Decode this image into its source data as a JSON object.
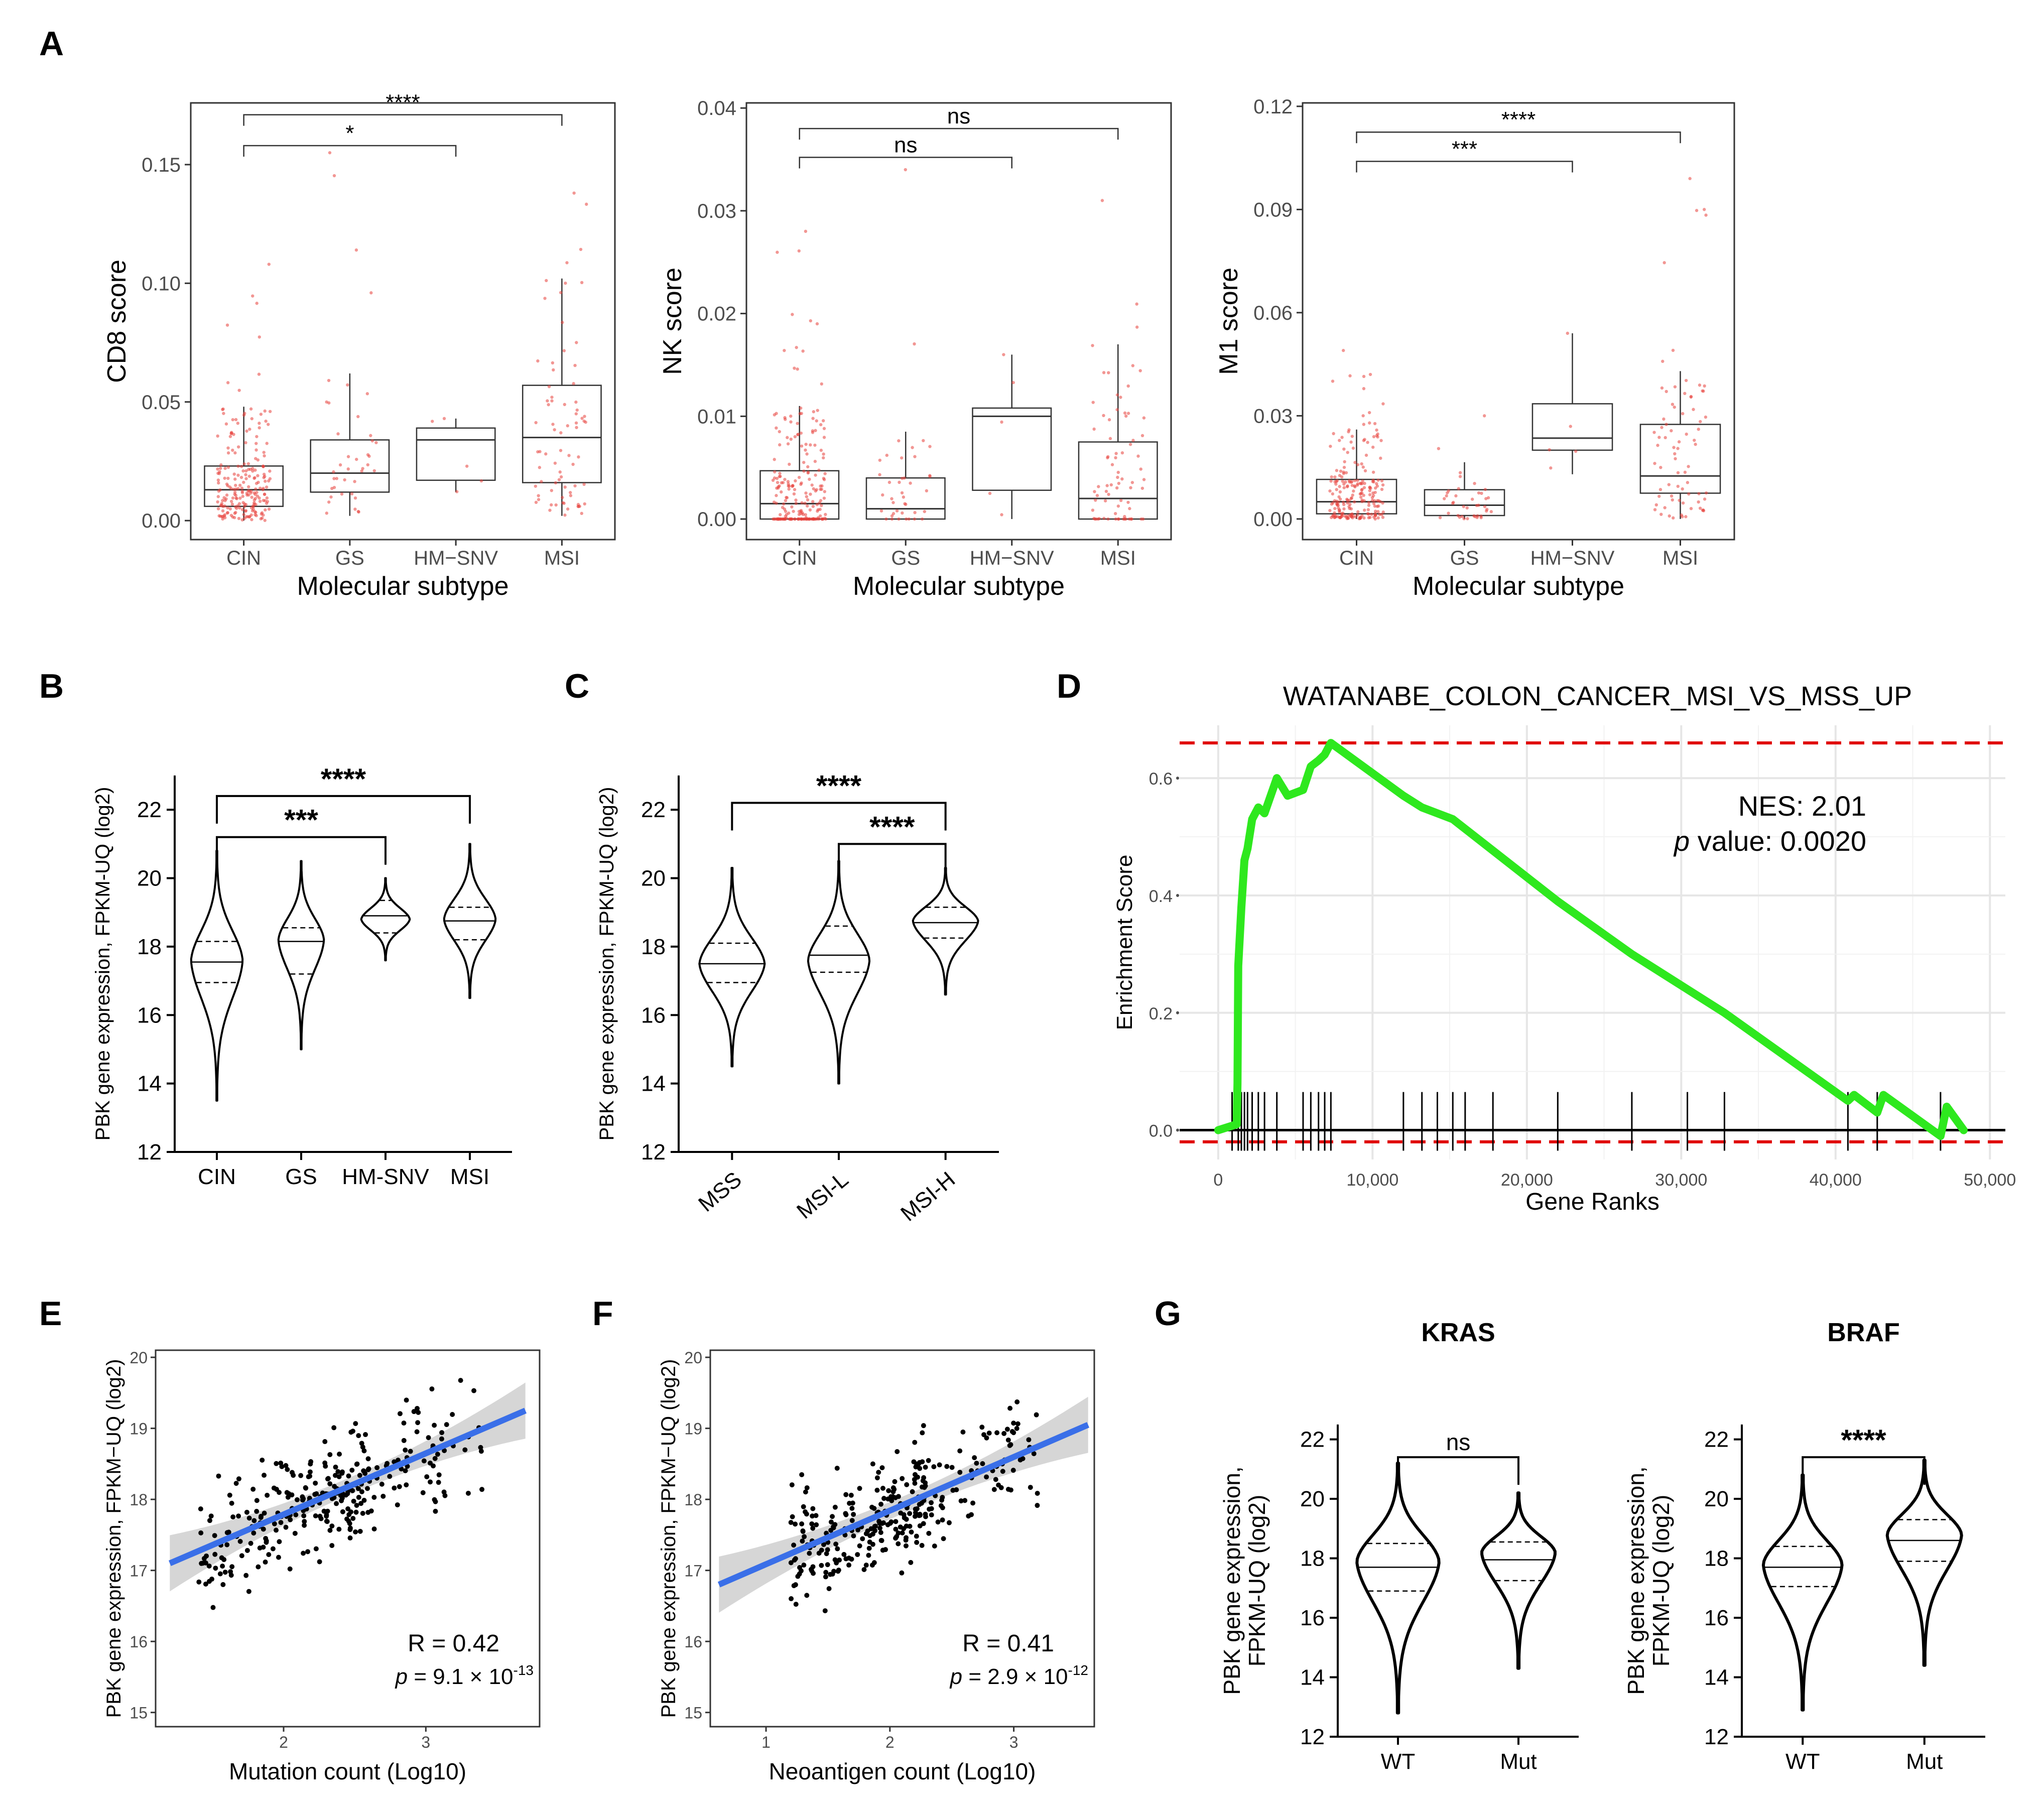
{
  "panel_labels": {
    "A": "A",
    "B": "B",
    "C": "C",
    "D": "D",
    "E": "E",
    "F": "F",
    "G": "G"
  },
  "colors": {
    "red_points": "#e8403a",
    "violin": "#000000",
    "gsea_line": "#2ee81e",
    "gsea_threshold": "#e00000",
    "regression": "#3a6fe8",
    "ci_band": "#c8c8c8"
  },
  "chart_data": [
    {
      "id": "A1",
      "type": "box",
      "ylabel": "CD8 score",
      "xlabel": "Molecular subtype",
      "categories": [
        "CIN",
        "GS",
        "HM−SNV",
        "MSI"
      ],
      "ylim": [
        -0.008,
        0.176
      ],
      "yticks": [
        0.0,
        0.05,
        0.1,
        0.15
      ],
      "ytick_labels": [
        "0.00",
        "0.05",
        "0.10",
        "0.15"
      ],
      "boxes": [
        {
          "q1": 0.006,
          "median": 0.013,
          "q3": 0.023,
          "lo": 0.0,
          "hi": 0.048,
          "n": 220,
          "max": 0.108
        },
        {
          "q1": 0.012,
          "median": 0.02,
          "q3": 0.034,
          "lo": 0.002,
          "hi": 0.062,
          "n": 40,
          "max": 0.155
        },
        {
          "q1": 0.017,
          "median": 0.034,
          "q3": 0.039,
          "lo": 0.012,
          "hi": 0.043,
          "n": 5,
          "max": 0.043
        },
        {
          "q1": 0.016,
          "median": 0.035,
          "q3": 0.057,
          "lo": 0.002,
          "hi": 0.102,
          "n": 75,
          "max": 0.138
        }
      ],
      "comparisons": [
        {
          "from": 0,
          "to": 2,
          "label": "*",
          "y": 0.158
        },
        {
          "from": 0,
          "to": 3,
          "label": "****",
          "y": 0.171
        }
      ]
    },
    {
      "id": "A2",
      "type": "box",
      "ylabel": "NK score",
      "xlabel": "Molecular subtype",
      "categories": [
        "CIN",
        "GS",
        "HM−SNV",
        "MSI"
      ],
      "ylim": [
        -0.002,
        0.0405
      ],
      "yticks": [
        0.0,
        0.01,
        0.02,
        0.03,
        0.04
      ],
      "ytick_labels": [
        "0.00",
        "0.01",
        "0.02",
        "0.03",
        "0.04"
      ],
      "boxes": [
        {
          "q1": 0.0,
          "median": 0.0015,
          "q3": 0.0047,
          "lo": 0.0,
          "hi": 0.011,
          "n": 220,
          "max": 0.028
        },
        {
          "q1": 0.0,
          "median": 0.001,
          "q3": 0.004,
          "lo": 0.0,
          "hi": 0.0085,
          "n": 40,
          "max": 0.034
        },
        {
          "q1": 0.0028,
          "median": 0.01,
          "q3": 0.0108,
          "lo": 0.0,
          "hi": 0.016,
          "n": 5,
          "max": 0.016
        },
        {
          "q1": 0.0,
          "median": 0.002,
          "q3": 0.0075,
          "lo": 0.0,
          "hi": 0.017,
          "n": 75,
          "max": 0.031
        }
      ],
      "comparisons": [
        {
          "from": 0,
          "to": 2,
          "label": "ns",
          "y": 0.0352
        },
        {
          "from": 0,
          "to": 3,
          "label": "ns",
          "y": 0.038
        }
      ]
    },
    {
      "id": "A3",
      "type": "box",
      "ylabel": "M1 score",
      "xlabel": "Molecular subtype",
      "categories": [
        "CIN",
        "GS",
        "HM−SNV",
        "MSI"
      ],
      "ylim": [
        -0.006,
        0.121
      ],
      "yticks": [
        0.0,
        0.03,
        0.06,
        0.09,
        0.12
      ],
      "ytick_labels": [
        "0.00",
        "0.03",
        "0.06",
        "0.09",
        "0.12"
      ],
      "boxes": [
        {
          "q1": 0.0015,
          "median": 0.005,
          "q3": 0.0115,
          "lo": 0.0,
          "hi": 0.026,
          "n": 220,
          "max": 0.049
        },
        {
          "q1": 0.001,
          "median": 0.004,
          "q3": 0.0085,
          "lo": 0.0,
          "hi": 0.0165,
          "n": 40,
          "max": 0.03
        },
        {
          "q1": 0.02,
          "median": 0.0235,
          "q3": 0.0335,
          "lo": 0.013,
          "hi": 0.054,
          "n": 5,
          "max": 0.054
        },
        {
          "q1": 0.0075,
          "median": 0.0125,
          "q3": 0.0275,
          "lo": 0.0,
          "hi": 0.043,
          "n": 75,
          "max": 0.099
        }
      ],
      "comparisons": [
        {
          "from": 0,
          "to": 2,
          "label": "***",
          "y": 0.104
        },
        {
          "from": 0,
          "to": 3,
          "label": "****",
          "y": 0.1125
        }
      ]
    },
    {
      "id": "B",
      "type": "violin",
      "ylabel": "PBK gene expression, FPKM-UQ (log2)",
      "categories": [
        "CIN",
        "GS",
        "HM-SNV",
        "MSI"
      ],
      "ylim": [
        12,
        23
      ],
      "yticks": [
        12,
        14,
        16,
        18,
        20,
        22
      ],
      "ytick_labels": [
        "12",
        "14",
        "16",
        "18",
        "20",
        "22"
      ],
      "violins": [
        {
          "lo": 13.5,
          "hi": 20.8,
          "q1": 16.95,
          "median": 17.55,
          "q3": 18.15,
          "mode": 17.6,
          "width": 0.85
        },
        {
          "lo": 15.0,
          "hi": 20.5,
          "q1": 17.2,
          "median": 18.15,
          "q3": 18.55,
          "mode": 18.2,
          "width": 0.75
        },
        {
          "lo": 17.6,
          "hi": 20.0,
          "q1": 18.4,
          "median": 18.9,
          "q3": 19.35,
          "mode": 18.8,
          "width": 0.8
        },
        {
          "lo": 16.5,
          "hi": 21.0,
          "q1": 18.2,
          "median": 18.75,
          "q3": 19.15,
          "mode": 18.8,
          "width": 0.85
        }
      ],
      "comparisons": [
        {
          "from": 0,
          "to": 2,
          "label": "***",
          "y": 21.2
        },
        {
          "from": 0,
          "to": 3,
          "label": "****",
          "y": 22.4
        }
      ]
    },
    {
      "id": "C",
      "type": "violin",
      "ylabel": "PBK gene expression, FPKM-UQ (log2)",
      "categories": [
        "MSS",
        "MSI-L",
        "MSI-H"
      ],
      "ylim": [
        12,
        23
      ],
      "yticks": [
        12,
        14,
        16,
        18,
        20,
        22
      ],
      "ytick_labels": [
        "12",
        "14",
        "16",
        "18",
        "20",
        "22"
      ],
      "violins": [
        {
          "lo": 14.5,
          "hi": 20.3,
          "q1": 16.95,
          "median": 17.5,
          "q3": 18.1,
          "mode": 17.5,
          "width": 0.85
        },
        {
          "lo": 14.0,
          "hi": 20.5,
          "q1": 17.25,
          "median": 17.75,
          "q3": 18.6,
          "mode": 17.6,
          "width": 0.8
        },
        {
          "lo": 16.6,
          "hi": 20.3,
          "q1": 18.25,
          "median": 18.7,
          "q3": 19.15,
          "mode": 18.75,
          "width": 0.85
        }
      ],
      "comparisons": [
        {
          "from": 1,
          "to": 2,
          "label": "****",
          "y": 21.0
        },
        {
          "from": 0,
          "to": 2,
          "label": "****",
          "y": 22.2
        }
      ]
    },
    {
      "id": "D",
      "type": "line",
      "title": "WATANABE_COLON_CANCER_MSI_VS_MSS_UP",
      "ylabel": "Enrichment Score",
      "xlabel": "Gene Ranks",
      "xlim": [
        -2500,
        51000
      ],
      "ylim": [
        -0.05,
        0.69
      ],
      "xticks": [
        0,
        10000,
        20000,
        30000,
        40000,
        50000
      ],
      "xtick_labels": [
        "0",
        "10,000",
        "20,000",
        "30,000",
        "40,000",
        "50,000"
      ],
      "yticks": [
        0,
        0.2,
        0.4,
        0.6
      ],
      "ytick_labels": [
        "0.0",
        "0.2",
        "0.4",
        "0.6"
      ],
      "thresholds": [
        0.66,
        -0.02
      ],
      "x": [
        0,
        1200,
        1250,
        1300,
        1500,
        1700,
        1900,
        2200,
        2600,
        3000,
        3800,
        4500,
        5500,
        6000,
        6500,
        6900,
        7300,
        12000,
        13200,
        14200,
        15200,
        22000,
        26800,
        30400,
        32800,
        40800,
        41200,
        42700,
        43100,
        46800,
        47200,
        48300
      ],
      "y": [
        0,
        0.01,
        0.08,
        0.28,
        0.38,
        0.46,
        0.48,
        0.53,
        0.55,
        0.54,
        0.6,
        0.57,
        0.58,
        0.62,
        0.63,
        0.64,
        0.66,
        0.57,
        0.55,
        0.54,
        0.53,
        0.39,
        0.3,
        0.24,
        0.2,
        0.05,
        0.06,
        0.03,
        0.06,
        -0.01,
        0.04,
        0.0
      ],
      "hits": [
        900,
        1300,
        1500,
        1700,
        1900,
        2200,
        2600,
        3000,
        3800,
        5500,
        6000,
        6500,
        6900,
        7300,
        12000,
        13200,
        14200,
        15200,
        16000,
        17800,
        22000,
        26800,
        30400,
        32800,
        40800,
        42700,
        46800
      ],
      "annotations": {
        "nes": "NES: 2.01",
        "p_label": "p",
        "p_text": " value: 0.0020"
      }
    },
    {
      "id": "E",
      "type": "scatter",
      "xlabel": "Mutation count (Log10)",
      "ylabel": "PBK gene expression, FPKM−UQ (log2)",
      "xlim": [
        1.1,
        3.8
      ],
      "ylim": [
        14.8,
        20.1
      ],
      "xticks": [
        2,
        3
      ],
      "xtick_labels": [
        "2",
        "3"
      ],
      "yticks": [
        15,
        16,
        17,
        18,
        19,
        20
      ],
      "ytick_labels": [
        "15",
        "16",
        "17",
        "18",
        "19",
        "20"
      ],
      "fit": {
        "x0": 1.2,
        "y0": 17.1,
        "x1": 3.7,
        "y1": 19.25
      },
      "cloud": {
        "seed": 11,
        "n": 300,
        "xmin": 1.4,
        "xmax": 2.6,
        "xmin2": 2.3,
        "xmax2": 3.4,
        "frac2": 0.33,
        "slope": 0.85,
        "intercept": 16.05,
        "spread": 0.95,
        "clip": [
          15.0,
          19.8
        ]
      },
      "stats": {
        "r": "R = 0.42",
        "p_label": "p",
        "p_mid": " = 9.1 × 10",
        "p_exp": "-13"
      }
    },
    {
      "id": "F",
      "type": "scatter",
      "xlabel": "Neoantigen count (Log10)",
      "ylabel": "PBK gene expression, FPKM−UQ (log2)",
      "xlim": [
        0.55,
        3.65
      ],
      "ylim": [
        14.8,
        20.1
      ],
      "xticks": [
        1,
        2,
        3
      ],
      "xtick_labels": [
        "1",
        "2",
        "3"
      ],
      "yticks": [
        15,
        16,
        17,
        18,
        19,
        20
      ],
      "ytick_labels": [
        "15",
        "16",
        "17",
        "18",
        "19",
        "20"
      ],
      "fit": {
        "x0": 0.62,
        "y0": 16.8,
        "x1": 3.6,
        "y1": 19.05
      },
      "cloud": {
        "seed": 23,
        "n": 300,
        "xmin": 1.2,
        "xmax": 2.3,
        "xmin2": 2.2,
        "xmax2": 3.2,
        "frac2": 0.33,
        "slope": 0.76,
        "intercept": 16.3,
        "spread": 0.95,
        "clip": [
          15.0,
          19.8
        ]
      },
      "stats": {
        "r": "R = 0.41",
        "p_label": "p",
        "p_mid": " = 2.9 × 10",
        "p_exp": "-12"
      }
    },
    {
      "id": "G1",
      "type": "violin",
      "title": "KRAS",
      "ylabel": "PBK gene expression, FPKM-UQ (log2)",
      "categories": [
        "WT",
        "Mut"
      ],
      "ylim": [
        12,
        22.5
      ],
      "yticks": [
        12,
        14,
        16,
        18,
        20,
        22
      ],
      "ytick_labels": [
        "12",
        "14",
        "16",
        "18",
        "20",
        "22"
      ],
      "violins": [
        {
          "lo": 12.8,
          "hi": 21.2,
          "q1": 16.9,
          "median": 17.7,
          "q3": 18.5,
          "mode": 17.9,
          "width": 0.95
        },
        {
          "lo": 14.3,
          "hi": 20.2,
          "q1": 17.25,
          "median": 17.95,
          "q3": 18.55,
          "mode": 18.2,
          "width": 0.85
        }
      ],
      "comparisons": [
        {
          "from": 0,
          "to": 1,
          "label": "ns",
          "y": 21.4
        }
      ]
    },
    {
      "id": "G2",
      "type": "violin",
      "title": "BRAF",
      "ylabel": "PBK gene expression, FPKM-UQ (log2)",
      "categories": [
        "WT",
        "Mut"
      ],
      "ylim": [
        12,
        22.5
      ],
      "yticks": [
        12,
        14,
        16,
        18,
        20,
        22
      ],
      "ytick_labels": [
        "12",
        "14",
        "16",
        "18",
        "20",
        "22"
      ],
      "violins": [
        {
          "lo": 12.9,
          "hi": 20.8,
          "q1": 17.05,
          "median": 17.7,
          "q3": 18.4,
          "mode": 17.8,
          "width": 0.9
        },
        {
          "lo": 14.4,
          "hi": 21.3,
          "q1": 17.9,
          "median": 18.6,
          "q3": 19.3,
          "mode": 18.8,
          "width": 0.85
        }
      ],
      "comparisons": [
        {
          "from": 0,
          "to": 1,
          "label": "****",
          "y": 21.4
        }
      ]
    }
  ]
}
